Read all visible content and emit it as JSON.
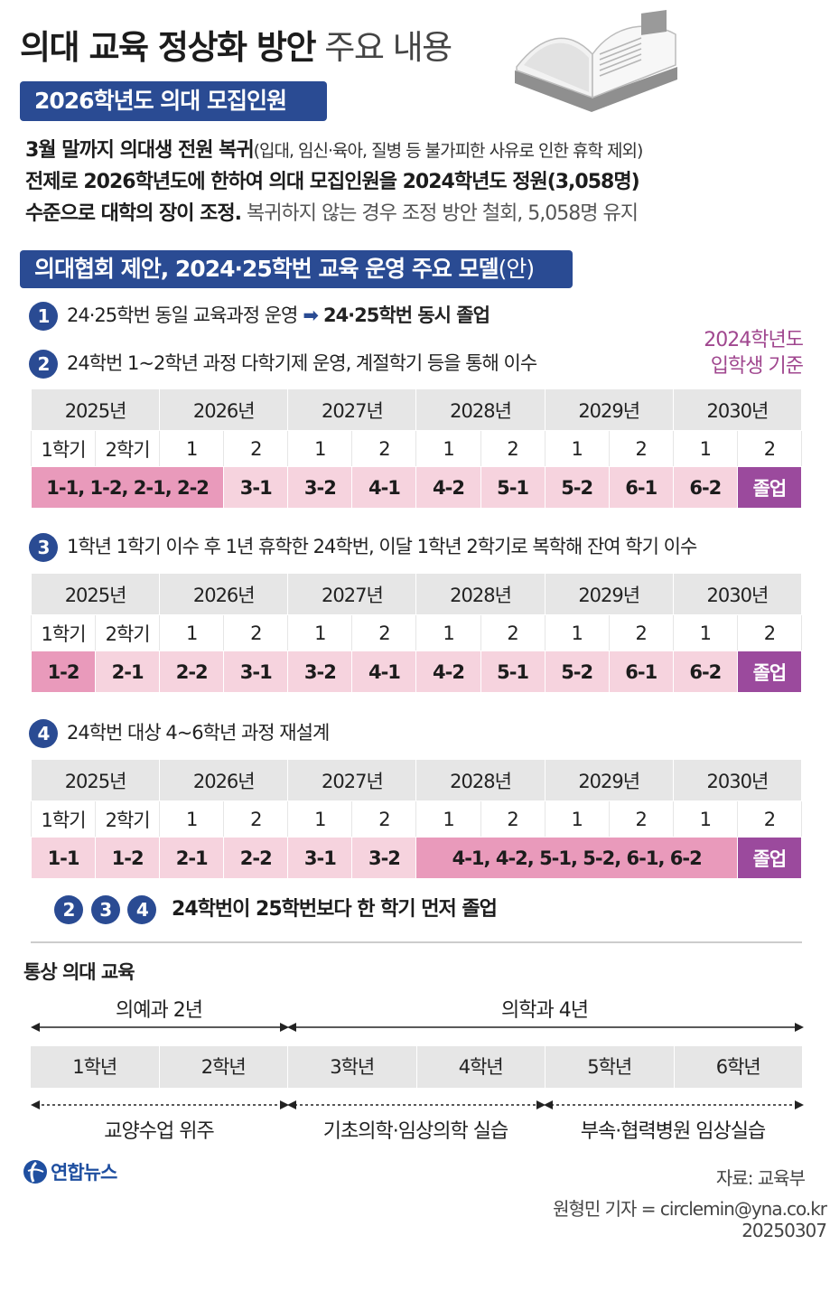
{
  "title": {
    "bold": "의대 교육 정상화 방안",
    "light": "주요 내용"
  },
  "section1": {
    "pill": "2026학년도 의대 모집인원",
    "line1_bold": "3월 말까지 의대생 전원 복귀",
    "line1_small": "(입대, 임신·육아, 질병 등 불가피한 사유로 인한 휴학 제외)",
    "line2": "전제로 2026학년도에 한하여 의대 모집인원을 2024학년도 정원(3,058명)",
    "line3_bold": "수준으로 대학의 장이 조정.",
    "line3_gray": "복귀하지 않는 경우 조정 방안 철회, 5,058명 유지"
  },
  "section2": {
    "pill_bold": "의대협회 제안, 2024·25학번 교육 운영 주요 모델",
    "pill_normal": "(안)",
    "note_line1": "2024학년도",
    "note_line2": "입학생 기준",
    "items": [
      {
        "num": "1",
        "text": "24·25학번 동일 교육과정 운영",
        "arrow": "➡",
        "result": "24·25학번 동시 졸업"
      },
      {
        "num": "2",
        "text": "24학번 1~2학년 과정 다학기제 운영, 계절학기 등을 통해 이수"
      },
      {
        "num": "3",
        "text": "1학년 1학기 이수 후 1년 휴학한 24학번, 이달 1학년 2학기로 복학해 잔여 학기 이수"
      },
      {
        "num": "4",
        "text": "24학번 대상 4~6학년 과정 재설계"
      }
    ],
    "years": [
      "2025년",
      "2026년",
      "2027년",
      "2028년",
      "2029년",
      "2030년"
    ],
    "semesters": [
      "1학기",
      "2학기",
      "1",
      "2",
      "1",
      "2",
      "1",
      "2",
      "1",
      "2",
      "1",
      "2"
    ],
    "table2": {
      "first": "1-1, 1-2, 2-1, 2-2",
      "rest": [
        "3-1",
        "3-2",
        "4-1",
        "4-2",
        "5-1",
        "5-2",
        "6-1",
        "6-2"
      ],
      "grad": "졸업"
    },
    "table3": {
      "cells": [
        "1-2",
        "2-1",
        "2-2",
        "3-1",
        "3-2",
        "4-1",
        "4-2",
        "5-1",
        "5-2",
        "6-1",
        "6-2"
      ],
      "grad": "졸업"
    },
    "table4": {
      "cells": [
        "1-1",
        "1-2",
        "2-1",
        "2-2",
        "3-1",
        "3-2"
      ],
      "merged": "4-1, 4-2, 5-1, 5-2, 6-1, 6-2",
      "grad": "졸업"
    },
    "summary": {
      "nums": [
        "2",
        "3",
        "4"
      ],
      "text": "24학번이 25학번보다 한 학기 먼저 졸업"
    }
  },
  "section3": {
    "title": "통상 의대 교육",
    "premed": "의예과 2년",
    "med": "의학과 4년",
    "grades": [
      "1학년",
      "2학년",
      "3학년",
      "4학년",
      "5학년",
      "6학년"
    ],
    "phases": [
      "교양수업 위주",
      "기초의학·임상의학 실습",
      "부속·협력병원 임상실습"
    ]
  },
  "footer": {
    "logo": "연합뉴스",
    "source": "자료: 교육부",
    "reporter": "원형민 기자 = circlemin@yna.co.kr",
    "date": "20250307"
  },
  "colors": {
    "navy": "#2a4b93",
    "pink_light": "#f6d3de",
    "pink": "#e99abb",
    "purple": "#9b4a9d",
    "gray": "#e6e6e6",
    "note": "#a0478f"
  },
  "icons": [
    "book-icon",
    "arrow-right-icon",
    "yonhap-logo-icon"
  ]
}
